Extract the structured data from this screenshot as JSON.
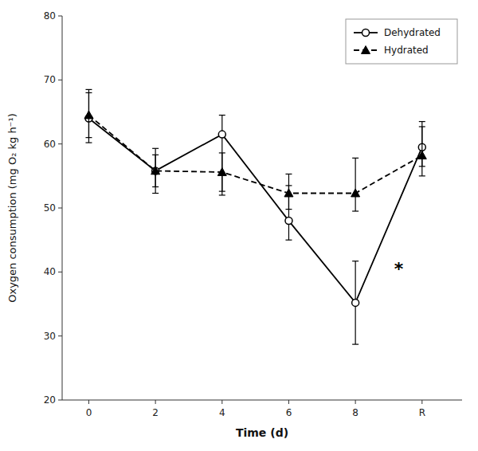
{
  "chart_data": {
    "type": "line",
    "xlabel": "Time (d)",
    "ylabel": "Oxygen consumption (mg O₂ kg h⁻¹)",
    "x": [
      0,
      2,
      4,
      6,
      8,
      10
    ],
    "xlim": [
      -0.8,
      11.2
    ],
    "xticks": [
      0,
      2,
      4,
      6,
      8,
      {
        "value": 10,
        "label": "R"
      }
    ],
    "ylim": [
      20,
      80
    ],
    "yticks": [
      20,
      30,
      40,
      50,
      60,
      70,
      80
    ],
    "grid": false,
    "legend": "upper right",
    "series": [
      {
        "name": "Dehydrated",
        "color": "black",
        "marker": "circle-open",
        "line_style": "solid",
        "values": [
          64.0,
          55.8,
          61.5,
          48.0,
          35.2,
          59.5
        ],
        "error_lower": [
          3.8,
          3.5,
          9.5,
          3.0,
          6.5,
          3.0
        ],
        "error_upper": [
          4.5,
          3.5,
          3.0,
          5.5,
          6.5,
          4.0
        ]
      },
      {
        "name": "Hydrated",
        "color": "black",
        "marker": "triangle",
        "line_style": "dashed",
        "values": [
          64.5,
          55.8,
          55.6,
          52.3,
          52.3,
          58.2
        ],
        "error_lower": [
          3.5,
          2.5,
          3.0,
          2.5,
          2.8,
          3.2
        ],
        "error_upper": [
          3.5,
          2.5,
          3.0,
          3.0,
          5.5,
          4.5
        ]
      }
    ],
    "annotations": [
      {
        "text": "*",
        "x": 9.3,
        "y": 40.5
      }
    ]
  }
}
